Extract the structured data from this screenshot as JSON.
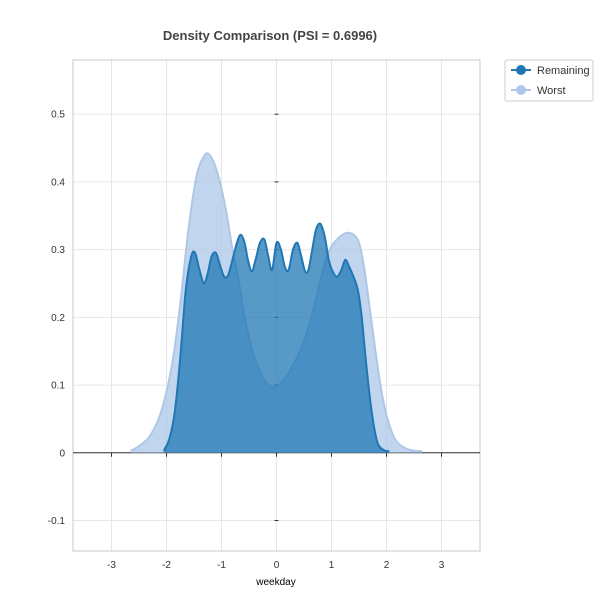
{
  "chart_data": {
    "type": "area",
    "title": "Density Comparison (PSI = 0.6996)",
    "xlabel": "weekday",
    "ylabel": "",
    "xlim": [
      -3.7,
      3.7
    ],
    "ylim": [
      -0.145,
      0.58
    ],
    "xticks": [
      -3,
      -2,
      -1,
      0,
      1,
      2,
      3
    ],
    "yticks": [
      -0.1,
      0,
      0.1,
      0.2,
      0.3,
      0.4,
      0.5
    ],
    "xtick_labels": [
      "-3",
      "-2",
      "-1",
      "0",
      "1",
      "2",
      "3"
    ],
    "ytick_labels": [
      "-0.1",
      "0",
      "0.1",
      "0.2",
      "0.3",
      "0.4",
      "0.5"
    ],
    "grid": true,
    "legend_position": "top-right outside",
    "series": [
      {
        "name": "Worst",
        "color": "#aec7e8",
        "fill_opacity": 0.75,
        "x": [
          -2.65,
          -2.5,
          -2.3,
          -2.1,
          -1.9,
          -1.75,
          -1.6,
          -1.45,
          -1.3,
          -1.2,
          -1.1,
          -1.0,
          -0.9,
          -0.8,
          -0.7,
          -0.6,
          -0.5,
          -0.4,
          -0.3,
          -0.2,
          -0.1,
          0.0,
          0.1,
          0.2,
          0.3,
          0.4,
          0.5,
          0.6,
          0.7,
          0.8,
          0.9,
          1.0,
          1.1,
          1.2,
          1.3,
          1.4,
          1.5,
          1.6,
          1.7,
          1.8,
          1.9,
          2.0,
          2.1,
          2.2,
          2.4,
          2.65
        ],
        "y": [
          0.003,
          0.01,
          0.025,
          0.06,
          0.13,
          0.22,
          0.33,
          0.41,
          0.44,
          0.438,
          0.42,
          0.39,
          0.35,
          0.3,
          0.26,
          0.21,
          0.17,
          0.14,
          0.12,
          0.105,
          0.098,
          0.098,
          0.105,
          0.115,
          0.13,
          0.145,
          0.165,
          0.19,
          0.22,
          0.255,
          0.285,
          0.305,
          0.315,
          0.322,
          0.325,
          0.322,
          0.31,
          0.27,
          0.21,
          0.15,
          0.095,
          0.055,
          0.03,
          0.015,
          0.005,
          0.002
        ]
      },
      {
        "name": "Remaining",
        "color": "#1f77b4",
        "fill_opacity": 0.75,
        "x": [
          -2.05,
          -1.95,
          -1.85,
          -1.75,
          -1.65,
          -1.55,
          -1.48,
          -1.4,
          -1.32,
          -1.25,
          -1.18,
          -1.1,
          -1.02,
          -0.95,
          -0.88,
          -0.8,
          -0.72,
          -0.65,
          -0.58,
          -0.52,
          -0.45,
          -0.38,
          -0.3,
          -0.22,
          -0.15,
          -0.08,
          0.0,
          0.08,
          0.15,
          0.22,
          0.3,
          0.38,
          0.45,
          0.52,
          0.58,
          0.65,
          0.72,
          0.8,
          0.88,
          0.95,
          1.02,
          1.1,
          1.18,
          1.25,
          1.32,
          1.4,
          1.48,
          1.55,
          1.62,
          1.7,
          1.78,
          1.85,
          1.95,
          2.05
        ],
        "y": [
          0.003,
          0.02,
          0.06,
          0.14,
          0.24,
          0.29,
          0.295,
          0.27,
          0.25,
          0.265,
          0.29,
          0.295,
          0.275,
          0.26,
          0.262,
          0.285,
          0.31,
          0.322,
          0.31,
          0.285,
          0.268,
          0.285,
          0.31,
          0.315,
          0.29,
          0.27,
          0.31,
          0.3,
          0.275,
          0.27,
          0.3,
          0.31,
          0.29,
          0.268,
          0.27,
          0.3,
          0.33,
          0.338,
          0.318,
          0.285,
          0.268,
          0.26,
          0.27,
          0.285,
          0.275,
          0.26,
          0.24,
          0.2,
          0.14,
          0.08,
          0.035,
          0.012,
          0.004,
          0.002
        ]
      }
    ]
  }
}
